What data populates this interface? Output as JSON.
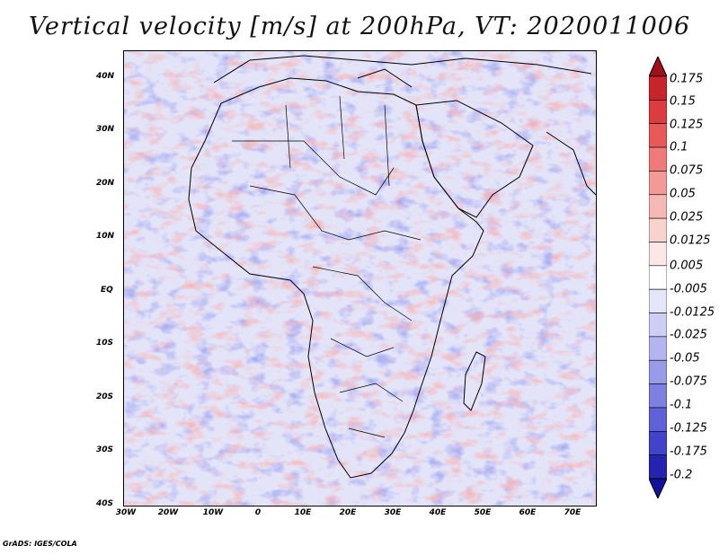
{
  "title": "Vertical velocity [m/s] at 200hPa, VT: 2020011006",
  "footer": "GrADS: IGES/COLA",
  "map": {
    "region": "Africa",
    "lon_range": [
      -30,
      75
    ],
    "lat_range": [
      -40,
      45
    ],
    "lat_labels": [
      "40N",
      "30N",
      "20N",
      "10N",
      "EQ",
      "10S",
      "20S",
      "30S",
      "40S"
    ],
    "lon_labels": [
      "30W",
      "20W",
      "10W",
      "0",
      "10E",
      "20E",
      "30E",
      "40E",
      "50E",
      "60E",
      "70E"
    ]
  },
  "colorbar": {
    "levels": [
      "0.175",
      "0.15",
      "0.125",
      "0.1",
      "0.075",
      "0.05",
      "0.025",
      "0.0125",
      "0.005",
      "-0.005",
      "-0.0125",
      "-0.025",
      "-0.05",
      "-0.075",
      "-0.1",
      "-0.125",
      "-0.175",
      "-0.2"
    ],
    "colors": [
      "#a01018",
      "#c8242c",
      "#dc3c40",
      "#e85a5a",
      "#ef7a78",
      "#f39a96",
      "#f6b8b4",
      "#f9d2ce",
      "#fbe8e6",
      "#ffffff",
      "#e6e6fa",
      "#cccef5",
      "#b2b5ef",
      "#979ce8",
      "#7c80e0",
      "#5e62d6",
      "#4044c8",
      "#2424b0",
      "#12129a"
    ]
  }
}
